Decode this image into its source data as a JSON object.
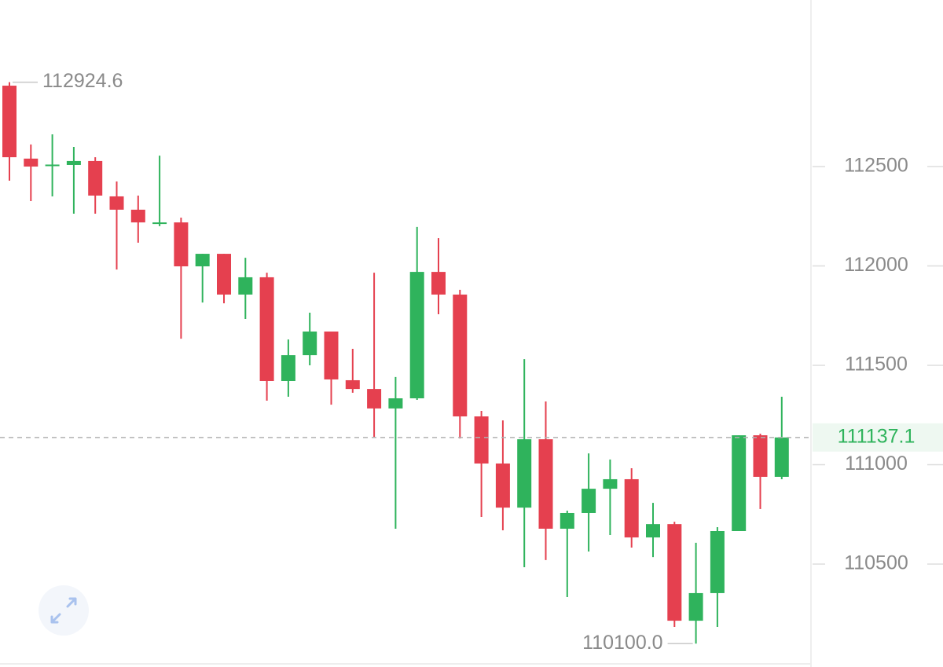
{
  "chart_data": {
    "type": "candlestick",
    "open": [
      112907,
      112540,
      112505,
      112508,
      112528,
      112350,
      112283,
      112215,
      112219,
      111998,
      112061,
      111856,
      111943,
      111421,
      111551,
      111670,
      111425,
      111381,
      111283,
      111334,
      111970,
      111856,
      111243,
      111006,
      110784,
      111128,
      110678,
      110757,
      110879,
      110927,
      110634,
      110701,
      110215,
      110354,
      110666,
      111148,
      110939
    ],
    "high": [
      112924.6,
      112611,
      112662,
      112599,
      112547,
      112425,
      112354,
      112555,
      112243,
      112061,
      112061,
      112041,
      111966,
      111630,
      111765,
      111670,
      111583,
      111966,
      111441,
      112196,
      112140,
      111880,
      111271,
      111223,
      111531,
      111318,
      110769,
      111057,
      111026,
      110982,
      110808,
      110713,
      110607,
      110686,
      111148,
      111156,
      111342
    ],
    "low": [
      112429,
      112326,
      112350,
      112263,
      112263,
      111982,
      112117,
      112200,
      111634,
      111816,
      111812,
      111733,
      111322,
      111342,
      111500,
      111302,
      111362,
      111140,
      110678,
      111326,
      111757,
      111132,
      110737,
      110670,
      110484,
      110520,
      110334,
      110563,
      110646,
      110583,
      110535,
      110184,
      110100,
      110184,
      110666,
      110777,
      110927
    ],
    "close": [
      112547,
      112500,
      112510,
      112528,
      112354,
      112283,
      112219,
      112219,
      111998,
      112061,
      111856,
      111943,
      111421,
      111551,
      111670,
      111429,
      111381,
      111283,
      111334,
      111970,
      111856,
      111243,
      111006,
      110784,
      111128,
      110678,
      110757,
      110879,
      110927,
      110634,
      110701,
      110215,
      110354,
      110666,
      111148,
      110939,
      111137.1
    ],
    "up_color": "#2fb35c",
    "down_color": "#e5404f",
    "ylim": [
      109998,
      113338
    ],
    "yticks": [
      110500,
      111000,
      111500,
      112000,
      112500
    ],
    "high_marker": 112924.6,
    "low_marker": {
      "value": 110100,
      "label": "110100.0"
    },
    "last_price": 111137.1
  }
}
